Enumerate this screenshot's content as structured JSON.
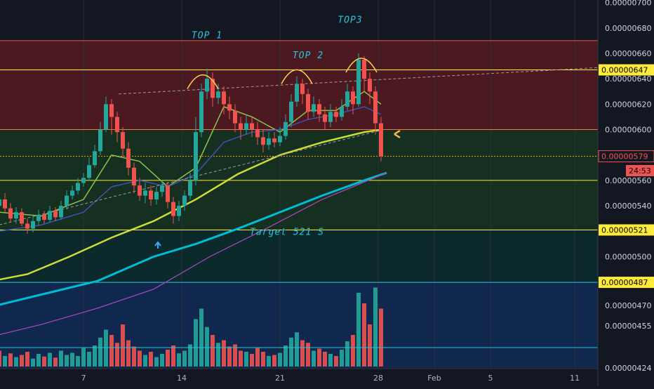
{
  "chart_data": {
    "type": "candlestick",
    "price_axis": {
      "ticks": [
        "0.00000700",
        "0.00000680",
        "0.00000660",
        "0.00000640",
        "0.00000620",
        "0.00000600",
        "0.00000560",
        "0.00000540",
        "0.00000500",
        "0.00000470",
        "0.00000455",
        "0.00000424"
      ],
      "tick_values": [
        700,
        680,
        660,
        640,
        620,
        600,
        560,
        540,
        500,
        470,
        455,
        424
      ]
    },
    "time_axis": {
      "ticks": [
        "7",
        "14",
        "21",
        "28",
        "Feb",
        "5",
        "11"
      ],
      "tick_days": [
        7,
        14,
        21,
        28,
        32,
        36,
        42
      ]
    },
    "price_tags": [
      {
        "label": "0.00000647",
        "value": 647,
        "bg": "#ffeb3b",
        "fg": "#000000"
      },
      {
        "label": "0.00000579",
        "value": 579,
        "bg": "#131722",
        "fg": "#ef5350"
      },
      {
        "label": "0.00000521",
        "value": 521,
        "bg": "#ffeb3b",
        "fg": "#000000"
      },
      {
        "label": "0.00000487",
        "value": 487,
        "bg": "#ffeb3b",
        "fg": "#000000"
      }
    ],
    "countdown": "24:53",
    "zones": [
      {
        "from": 600,
        "to": 670,
        "color": "#b71c1c"
      },
      {
        "from": 560,
        "to": 600,
        "color": "#1b5e20"
      },
      {
        "from": 521,
        "to": 560,
        "color": "#1b5e20"
      },
      {
        "from": 487,
        "to": 521,
        "color": "#004d40"
      },
      {
        "from": 424,
        "to": 487,
        "color": "#0d47a1"
      }
    ],
    "hlines": [
      {
        "value": 670,
        "color": "#ef5350"
      },
      {
        "value": 647,
        "color": "#ffeb3b"
      },
      {
        "value": 600,
        "color": "#ff7043"
      },
      {
        "value": 579,
        "color": "#ff9800",
        "dashed": true
      },
      {
        "value": 560,
        "color": "#ffeb3b"
      },
      {
        "value": 521,
        "color": "#ffeb3b"
      },
      {
        "value": 487,
        "color": "#26c6da"
      },
      {
        "value": 439,
        "color": "#26c6da"
      }
    ],
    "annotations": [
      {
        "text": "TOP 1",
        "day": 15.8,
        "value": 672
      },
      {
        "text": "TOP 2",
        "day": 23.0,
        "value": 656
      },
      {
        "text": "TOP3",
        "day": 26.0,
        "value": 684
      },
      {
        "text": "Target 521 S",
        "day": 21.5,
        "value": 517
      }
    ],
    "tops": [
      {
        "day": 15.5,
        "value": 642
      },
      {
        "day": 22.2,
        "value": 646
      },
      {
        "day": 26.8,
        "value": 655
      }
    ],
    "candles": [
      [
        1.0,
        540,
        545,
        548,
        536
      ],
      [
        1.4,
        545,
        538,
        550,
        534
      ],
      [
        1.8,
        538,
        530,
        542,
        527
      ],
      [
        2.2,
        530,
        535,
        539,
        526
      ],
      [
        2.6,
        535,
        526,
        538,
        524
      ],
      [
        3.0,
        526,
        522,
        530,
        518
      ],
      [
        3.4,
        522,
        528,
        532,
        519
      ],
      [
        3.8,
        528,
        533,
        537,
        525
      ],
      [
        4.2,
        533,
        529,
        536,
        526
      ],
      [
        4.6,
        529,
        536,
        540,
        527
      ],
      [
        5.0,
        536,
        531,
        539,
        528
      ],
      [
        5.4,
        531,
        540,
        544,
        529
      ],
      [
        5.8,
        540,
        548,
        552,
        537
      ],
      [
        6.2,
        548,
        552,
        556,
        545
      ],
      [
        6.6,
        552,
        558,
        562,
        549
      ],
      [
        7.0,
        558,
        562,
        566,
        555
      ],
      [
        7.4,
        562,
        572,
        578,
        560
      ],
      [
        7.8,
        572,
        583,
        588,
        570
      ],
      [
        8.2,
        583,
        600,
        606,
        580
      ],
      [
        8.6,
        600,
        620,
        626,
        598
      ],
      [
        9.0,
        620,
        610,
        624,
        596
      ],
      [
        9.4,
        610,
        598,
        614,
        590
      ],
      [
        9.8,
        598,
        585,
        602,
        578
      ],
      [
        10.2,
        585,
        570,
        590,
        564
      ],
      [
        10.6,
        570,
        556,
        574,
        550
      ],
      [
        11.0,
        556,
        548,
        562,
        544
      ],
      [
        11.4,
        548,
        552,
        558,
        542
      ],
      [
        11.8,
        552,
        545,
        556,
        540
      ],
      [
        12.2,
        545,
        551,
        555,
        541
      ],
      [
        12.6,
        551,
        556,
        560,
        547
      ],
      [
        13.0,
        556,
        543,
        559,
        538
      ],
      [
        13.4,
        543,
        532,
        547,
        526
      ],
      [
        13.8,
        532,
        540,
        544,
        528
      ],
      [
        14.2,
        540,
        548,
        552,
        536
      ],
      [
        14.6,
        548,
        560,
        566,
        545
      ],
      [
        15.0,
        560,
        598,
        610,
        556
      ],
      [
        15.4,
        598,
        630,
        636,
        594
      ],
      [
        15.8,
        630,
        640,
        648,
        624
      ],
      [
        16.2,
        640,
        625,
        645,
        618
      ],
      [
        16.6,
        625,
        630,
        636,
        620
      ],
      [
        17.0,
        630,
        620,
        634,
        612
      ],
      [
        17.4,
        620,
        615,
        626,
        608
      ],
      [
        17.8,
        615,
        605,
        620,
        598
      ],
      [
        18.2,
        605,
        600,
        610,
        592
      ],
      [
        18.6,
        600,
        605,
        612,
        596
      ],
      [
        19.0,
        605,
        600,
        610,
        594
      ],
      [
        19.4,
        600,
        594,
        606,
        588
      ],
      [
        19.8,
        594,
        588,
        600,
        582
      ],
      [
        20.2,
        588,
        593,
        598,
        584
      ],
      [
        20.6,
        593,
        590,
        598,
        586
      ],
      [
        21.0,
        590,
        595,
        602,
        587
      ],
      [
        21.4,
        595,
        606,
        612,
        592
      ],
      [
        21.8,
        606,
        622,
        628,
        602
      ],
      [
        22.2,
        622,
        636,
        642,
        618
      ],
      [
        22.6,
        636,
        628,
        640,
        620
      ],
      [
        23.0,
        628,
        614,
        632,
        608
      ],
      [
        23.4,
        614,
        620,
        626,
        610
      ],
      [
        23.8,
        620,
        612,
        624,
        606
      ],
      [
        24.2,
        612,
        606,
        618,
        600
      ],
      [
        24.6,
        606,
        614,
        620,
        602
      ],
      [
        25.0,
        614,
        610,
        618,
        606
      ],
      [
        25.4,
        610,
        618,
        624,
        607
      ],
      [
        25.8,
        618,
        630,
        636,
        615
      ],
      [
        26.2,
        630,
        620,
        634,
        612
      ],
      [
        26.6,
        620,
        655,
        660,
        618
      ],
      [
        27.0,
        655,
        640,
        658,
        630
      ],
      [
        27.4,
        640,
        630,
        645,
        620
      ],
      [
        27.8,
        630,
        605,
        634,
        596
      ],
      [
        28.2,
        605,
        579,
        610,
        575
      ]
    ],
    "volume_bars": [
      [
        1.0,
        30,
        "#ef5350"
      ],
      [
        1.4,
        20,
        "#26a69a"
      ],
      [
        1.8,
        25,
        "#ef5350"
      ],
      [
        2.2,
        18,
        "#26a69a"
      ],
      [
        2.6,
        22,
        "#ef5350"
      ],
      [
        3.0,
        28,
        "#ef5350"
      ],
      [
        3.4,
        15,
        "#26a69a"
      ],
      [
        3.8,
        24,
        "#26a69a"
      ],
      [
        4.2,
        19,
        "#ef5350"
      ],
      [
        4.6,
        26,
        "#26a69a"
      ],
      [
        5.0,
        17,
        "#ef5350"
      ],
      [
        5.4,
        30,
        "#26a69a"
      ],
      [
        5.8,
        22,
        "#26a69a"
      ],
      [
        6.2,
        26,
        "#26a69a"
      ],
      [
        6.6,
        20,
        "#26a69a"
      ],
      [
        7.0,
        35,
        "#26a69a"
      ],
      [
        7.4,
        28,
        "#26a69a"
      ],
      [
        7.8,
        40,
        "#26a69a"
      ],
      [
        8.2,
        55,
        "#26a69a"
      ],
      [
        8.6,
        70,
        "#26a69a"
      ],
      [
        9.0,
        60,
        "#ef5350"
      ],
      [
        9.4,
        45,
        "#ef5350"
      ],
      [
        9.8,
        80,
        "#ef5350"
      ],
      [
        10.2,
        50,
        "#ef5350"
      ],
      [
        10.6,
        38,
        "#ef5350"
      ],
      [
        11.0,
        30,
        "#ef5350"
      ],
      [
        11.4,
        22,
        "#26a69a"
      ],
      [
        11.8,
        28,
        "#ef5350"
      ],
      [
        12.2,
        18,
        "#26a69a"
      ],
      [
        12.6,
        24,
        "#26a69a"
      ],
      [
        13.0,
        32,
        "#ef5350"
      ],
      [
        13.4,
        40,
        "#ef5350"
      ],
      [
        13.8,
        25,
        "#26a69a"
      ],
      [
        14.2,
        30,
        "#26a69a"
      ],
      [
        14.6,
        42,
        "#26a69a"
      ],
      [
        15.0,
        90,
        "#26a69a"
      ],
      [
        15.4,
        110,
        "#26a69a"
      ],
      [
        15.8,
        75,
        "#26a69a"
      ],
      [
        16.2,
        60,
        "#ef5350"
      ],
      [
        16.6,
        45,
        "#26a69a"
      ],
      [
        17.0,
        50,
        "#ef5350"
      ],
      [
        17.4,
        38,
        "#ef5350"
      ],
      [
        17.8,
        42,
        "#ef5350"
      ],
      [
        18.2,
        30,
        "#ef5350"
      ],
      [
        18.6,
        28,
        "#26a69a"
      ],
      [
        19.0,
        24,
        "#ef5350"
      ],
      [
        19.4,
        35,
        "#ef5350"
      ],
      [
        19.8,
        28,
        "#ef5350"
      ],
      [
        20.2,
        20,
        "#26a69a"
      ],
      [
        20.6,
        22,
        "#ef5350"
      ],
      [
        21.0,
        26,
        "#26a69a"
      ],
      [
        21.4,
        40,
        "#26a69a"
      ],
      [
        21.8,
        55,
        "#26a69a"
      ],
      [
        22.2,
        65,
        "#26a69a"
      ],
      [
        22.6,
        50,
        "#ef5350"
      ],
      [
        23.0,
        45,
        "#ef5350"
      ],
      [
        23.4,
        30,
        "#26a69a"
      ],
      [
        23.8,
        34,
        "#ef5350"
      ],
      [
        24.2,
        28,
        "#ef5350"
      ],
      [
        24.6,
        24,
        "#26a69a"
      ],
      [
        25.0,
        20,
        "#ef5350"
      ],
      [
        25.4,
        32,
        "#26a69a"
      ],
      [
        25.8,
        48,
        "#26a69a"
      ],
      [
        26.2,
        60,
        "#ef5350"
      ],
      [
        26.6,
        140,
        "#26a69a"
      ],
      [
        27.0,
        120,
        "#ef5350"
      ],
      [
        27.4,
        80,
        "#ef5350"
      ],
      [
        27.8,
        150,
        "#26a69a"
      ],
      [
        28.2,
        110,
        "#ef5350"
      ]
    ],
    "moving_averages": [
      {
        "color": "#8bc34a",
        "width": 1.5,
        "points": [
          [
            1,
            535
          ],
          [
            4,
            532
          ],
          [
            7,
            545
          ],
          [
            9,
            580
          ],
          [
            11,
            575
          ],
          [
            13,
            555
          ],
          [
            15,
            570
          ],
          [
            17,
            618
          ],
          [
            19,
            610
          ],
          [
            21,
            598
          ],
          [
            23,
            615
          ],
          [
            25,
            615
          ],
          [
            27,
            630
          ],
          [
            28.2,
            620
          ]
        ]
      },
      {
        "color": "#3f51b5",
        "width": 1.5,
        "points": [
          [
            1,
            520
          ],
          [
            4,
            525
          ],
          [
            7,
            535
          ],
          [
            9,
            555
          ],
          [
            11,
            560
          ],
          [
            13,
            555
          ],
          [
            15,
            565
          ],
          [
            17,
            590
          ],
          [
            19,
            598
          ],
          [
            21,
            600
          ],
          [
            23,
            608
          ],
          [
            25,
            612
          ],
          [
            27,
            618
          ],
          [
            28.2,
            612
          ]
        ]
      },
      {
        "color": "#cddc39",
        "width": 2.5,
        "points": [
          [
            0,
            487
          ],
          [
            3,
            493
          ],
          [
            6,
            500
          ],
          [
            9,
            515
          ],
          [
            12,
            528
          ],
          [
            15,
            545
          ],
          [
            18,
            565
          ],
          [
            21,
            580
          ],
          [
            24,
            590
          ],
          [
            27,
            598
          ],
          [
            28.2,
            600
          ]
        ]
      },
      {
        "color": "#00bcd4",
        "width": 3,
        "points": [
          [
            0,
            468
          ],
          [
            4,
            478
          ],
          [
            8,
            488
          ],
          [
            12,
            500
          ],
          [
            15,
            510
          ],
          [
            18,
            522
          ],
          [
            21,
            535
          ],
          [
            24,
            548
          ],
          [
            27,
            560
          ],
          [
            28.6,
            566
          ]
        ]
      },
      {
        "color": "#ab47bc",
        "width": 1.2,
        "points": [
          [
            0,
            446
          ],
          [
            4,
            456
          ],
          [
            8,
            468
          ],
          [
            12,
            482
          ],
          [
            16,
            500
          ],
          [
            20,
            522
          ],
          [
            24,
            545
          ],
          [
            28.6,
            566
          ]
        ]
      }
    ],
    "trendline": {
      "color": "#9e9e9e",
      "from": [
        9.5,
        628
      ],
      "to": [
        44,
        649
      ]
    },
    "support_trend": {
      "color": "#9e9e9e",
      "from": [
        1,
        525
      ],
      "to": [
        28.4,
        600
      ]
    }
  }
}
